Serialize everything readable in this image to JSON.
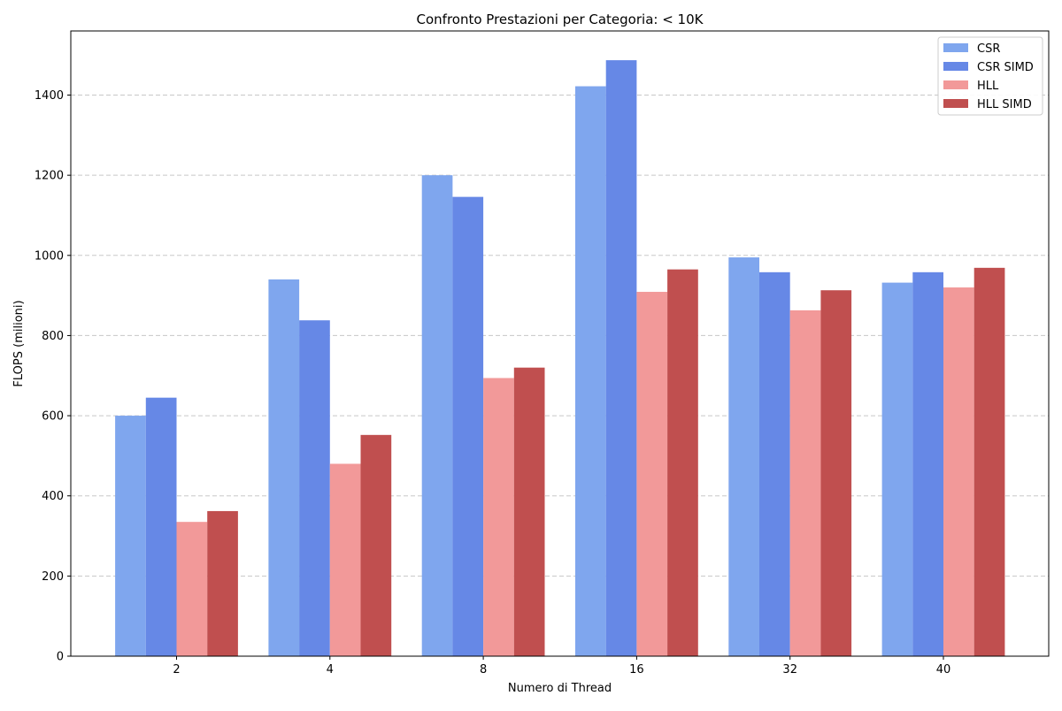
{
  "chart_data": {
    "type": "bar",
    "title": "Confronto Prestazioni per Categoria: < 10K",
    "xlabel": "Numero di Thread",
    "ylabel": "FLOPS (milioni)",
    "categories": [
      "2",
      "4",
      "8",
      "16",
      "32",
      "40"
    ],
    "ylim": [
      0,
      1560
    ],
    "yticks": [
      0,
      200,
      400,
      600,
      800,
      1000,
      1200,
      1400
    ],
    "grid": "y-dashed",
    "legend": "top-right",
    "series": [
      {
        "name": "CSR",
        "color": "#7fa6ee",
        "values": [
          600,
          940,
          1200,
          1422,
          995,
          932
        ]
      },
      {
        "name": "CSR SIMD",
        "color": "#6688e6",
        "values": [
          645,
          838,
          1146,
          1487,
          958,
          958
        ]
      },
      {
        "name": "HLL",
        "color": "#f29999",
        "values": [
          335,
          480,
          694,
          909,
          863,
          920
        ]
      },
      {
        "name": "HLL SIMD",
        "color": "#c04f4f",
        "values": [
          362,
          552,
          720,
          965,
          913,
          969
        ]
      }
    ]
  }
}
